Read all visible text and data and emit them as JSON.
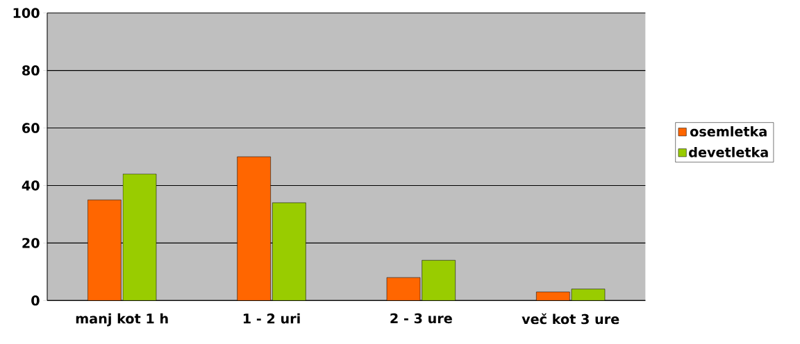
{
  "chart_data": {
    "type": "bar",
    "categories": [
      "manj kot 1 h",
      "1 - 2 uri",
      "2 - 3 ure",
      "več kot 3 ure"
    ],
    "series": [
      {
        "name": "osemletka",
        "color": "#ff6600",
        "values": [
          35,
          50,
          8,
          3
        ]
      },
      {
        "name": "devetletka",
        "color": "#99cc00",
        "values": [
          44,
          34,
          14,
          4
        ]
      }
    ],
    "ylim": [
      0,
      100
    ],
    "yticks": [
      0,
      20,
      40,
      60,
      80,
      100
    ],
    "grid": "y",
    "legend": "right"
  }
}
